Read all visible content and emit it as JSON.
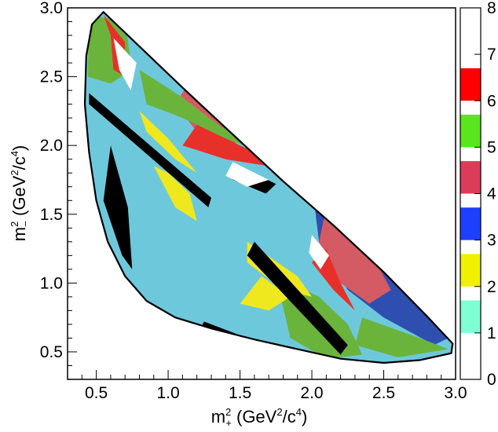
{
  "chart_data": {
    "type": "heatmap",
    "title": "",
    "xlabel": {
      "base": "m",
      "sup": "2",
      "sub": "+",
      "unit_pre": " (GeV",
      "unit_sup1": "2",
      "unit_mid": "/c",
      "unit_sup2": "4",
      "unit_post": ")"
    },
    "ylabel": {
      "base": "m",
      "sup": "2",
      "sub": "−",
      "unit_pre": " (GeV",
      "unit_sup1": "2",
      "unit_mid": "/c",
      "unit_sup2": "4",
      "unit_post": ")"
    },
    "xlim": [
      0.3,
      3.0
    ],
    "ylim": [
      0.3,
      3.0
    ],
    "x_ticks": [
      {
        "value": 0.5,
        "label": "0.5"
      },
      {
        "value": 1.0,
        "label": "1.0"
      },
      {
        "value": 1.5,
        "label": "1.5"
      },
      {
        "value": 2.0,
        "label": "2.0"
      },
      {
        "value": 2.5,
        "label": "2.5"
      },
      {
        "value": 3.0,
        "label": "3.0"
      }
    ],
    "y_ticks": [
      {
        "value": 0.5,
        "label": "0.5"
      },
      {
        "value": 1.0,
        "label": "1.0"
      },
      {
        "value": 1.5,
        "label": "1.5"
      },
      {
        "value": 2.0,
        "label": "2.0"
      },
      {
        "value": 2.5,
        "label": "2.5"
      },
      {
        "value": 3.0,
        "label": "3.0"
      }
    ],
    "colorbar": {
      "range": [
        0,
        8
      ],
      "bins": [
        {
          "value": 0,
          "color": "#ffffff"
        },
        {
          "value": 1,
          "color": "#7fffd4"
        },
        {
          "value": 2,
          "color": "#f0f000"
        },
        {
          "value": 3,
          "color": "#1f3fff"
        },
        {
          "value": 4,
          "color": "#dc3c5a"
        },
        {
          "value": 5,
          "color": "#5ae61e"
        },
        {
          "value": 6,
          "color": "#ff0000"
        },
        {
          "value": 7,
          "color": "#ffffff"
        },
        {
          "value": 8,
          "color": "#000000"
        }
      ],
      "labels": [
        {
          "value": 0,
          "label": "0"
        },
        {
          "value": 1,
          "label": "1"
        },
        {
          "value": 2,
          "label": "2"
        },
        {
          "value": 3,
          "label": "3"
        },
        {
          "value": 4,
          "label": "4"
        },
        {
          "value": 5,
          "label": "5"
        },
        {
          "value": 6,
          "label": "6"
        },
        {
          "value": 7,
          "label": "7"
        },
        {
          "value": 8,
          "label": "8"
        }
      ]
    },
    "region_colors": {
      "background_fill": "#6ec8dc",
      "blue": "#2e4fb0",
      "red": "#e8302a",
      "green": "#6ab43c",
      "yellow": "#f0e81e",
      "pink": "#d45a64",
      "black": "#000000",
      "white": "#ffffff"
    },
    "boundary": [
      [
        0.55,
        2.97
      ],
      [
        0.8,
        2.72
      ],
      [
        1.1,
        2.42
      ],
      [
        1.45,
        2.08
      ],
      [
        1.8,
        1.74
      ],
      [
        2.15,
        1.42
      ],
      [
        2.5,
        1.08
      ],
      [
        2.8,
        0.76
      ],
      [
        2.98,
        0.56
      ],
      [
        2.97,
        0.49
      ],
      [
        2.75,
        0.44
      ],
      [
        2.5,
        0.42
      ],
      [
        2.2,
        0.45
      ],
      [
        1.9,
        0.52
      ],
      [
        1.6,
        0.59
      ],
      [
        1.3,
        0.67
      ],
      [
        1.05,
        0.75
      ],
      [
        0.85,
        0.87
      ],
      [
        0.7,
        1.05
      ],
      [
        0.58,
        1.3
      ],
      [
        0.5,
        1.6
      ],
      [
        0.45,
        1.95
      ],
      [
        0.42,
        2.3
      ],
      [
        0.43,
        2.65
      ],
      [
        0.47,
        2.88
      ]
    ],
    "patches": [
      {
        "color": "blue",
        "points": [
          [
            0.95,
            2.8
          ],
          [
            1.4,
            2.3
          ],
          [
            1.8,
            1.95
          ],
          [
            2.05,
            1.72
          ],
          [
            1.85,
            1.95
          ],
          [
            1.5,
            2.25
          ],
          [
            1.15,
            2.55
          ],
          [
            0.9,
            2.75
          ]
        ]
      },
      {
        "color": "blue",
        "points": [
          [
            2.0,
            1.72
          ],
          [
            2.5,
            1.15
          ],
          [
            2.95,
            0.6
          ],
          [
            2.85,
            0.55
          ],
          [
            2.5,
            0.75
          ],
          [
            2.25,
            0.95
          ],
          [
            2.05,
            1.3
          ]
        ]
      },
      {
        "color": "pink",
        "points": [
          [
            1.2,
            2.55
          ],
          [
            1.5,
            2.35
          ],
          [
            1.6,
            2.15
          ],
          [
            1.45,
            2.0
          ],
          [
            1.2,
            2.1
          ],
          [
            1.05,
            2.3
          ]
        ]
      },
      {
        "color": "pink",
        "points": [
          [
            2.1,
            1.55
          ],
          [
            2.45,
            1.15
          ],
          [
            2.55,
            0.95
          ],
          [
            2.4,
            0.85
          ],
          [
            2.2,
            1.0
          ],
          [
            2.05,
            1.3
          ]
        ]
      },
      {
        "color": "green",
        "points": [
          [
            0.45,
            2.95
          ],
          [
            0.7,
            2.9
          ],
          [
            0.75,
            2.55
          ],
          [
            0.6,
            2.45
          ],
          [
            0.44,
            2.5
          ]
        ]
      },
      {
        "color": "green",
        "points": [
          [
            0.8,
            2.55
          ],
          [
            1.1,
            2.35
          ],
          [
            1.35,
            2.15
          ],
          [
            1.65,
            1.95
          ],
          [
            1.4,
            2.05
          ],
          [
            1.1,
            2.2
          ],
          [
            0.85,
            2.3
          ]
        ]
      },
      {
        "color": "green",
        "points": [
          [
            1.75,
            1.05
          ],
          [
            2.05,
            0.9
          ],
          [
            2.25,
            0.7
          ],
          [
            2.35,
            0.48
          ],
          [
            2.1,
            0.45
          ],
          [
            1.85,
            0.6
          ]
        ]
      },
      {
        "color": "green",
        "points": [
          [
            2.35,
            0.75
          ],
          [
            2.75,
            0.6
          ],
          [
            2.95,
            0.52
          ],
          [
            2.6,
            0.46
          ],
          [
            2.3,
            0.55
          ]
        ]
      },
      {
        "color": "red",
        "points": [
          [
            0.55,
            2.95
          ],
          [
            0.7,
            2.75
          ],
          [
            0.7,
            2.5
          ],
          [
            0.62,
            2.55
          ],
          [
            0.6,
            2.8
          ]
        ]
      },
      {
        "color": "red",
        "points": [
          [
            1.2,
            2.15
          ],
          [
            1.6,
            1.95
          ],
          [
            1.7,
            1.85
          ],
          [
            1.4,
            1.9
          ],
          [
            1.1,
            2.0
          ]
        ]
      },
      {
        "color": "red",
        "points": [
          [
            2.1,
            1.25
          ],
          [
            2.2,
            1.0
          ],
          [
            2.3,
            0.8
          ],
          [
            2.15,
            0.95
          ],
          [
            2.0,
            1.15
          ]
        ]
      },
      {
        "color": "red",
        "points": [
          [
            1.15,
            0.55
          ],
          [
            1.45,
            0.55
          ],
          [
            1.3,
            0.48
          ],
          [
            1.1,
            0.5
          ]
        ]
      },
      {
        "color": "red",
        "points": [
          [
            0.55,
            1.25
          ],
          [
            0.65,
            1.15
          ],
          [
            0.6,
            1.05
          ],
          [
            0.52,
            1.15
          ]
        ]
      },
      {
        "color": "yellow",
        "points": [
          [
            0.9,
            1.85
          ],
          [
            1.05,
            1.55
          ],
          [
            1.2,
            1.45
          ],
          [
            1.15,
            1.65
          ],
          [
            1.0,
            1.8
          ]
        ]
      },
      {
        "color": "yellow",
        "points": [
          [
            1.55,
            1.3
          ],
          [
            1.9,
            1.05
          ],
          [
            2.0,
            0.9
          ],
          [
            1.8,
            0.95
          ],
          [
            1.55,
            1.15
          ]
        ]
      },
      {
        "color": "yellow",
        "points": [
          [
            1.65,
            1.05
          ],
          [
            1.85,
            0.9
          ],
          [
            1.7,
            0.8
          ],
          [
            1.5,
            0.85
          ]
        ]
      },
      {
        "color": "yellow",
        "points": [
          [
            0.8,
            2.25
          ],
          [
            1.0,
            2.05
          ],
          [
            1.2,
            1.8
          ],
          [
            1.05,
            1.9
          ],
          [
            0.85,
            2.1
          ]
        ]
      },
      {
        "color": "black",
        "points": [
          [
            0.6,
            2.0
          ],
          [
            0.72,
            1.55
          ],
          [
            0.75,
            1.1
          ],
          [
            0.68,
            1.2
          ],
          [
            0.55,
            1.6
          ]
        ]
      },
      {
        "color": "black",
        "points": [
          [
            0.45,
            2.38
          ],
          [
            1.3,
            1.62
          ],
          [
            1.28,
            1.55
          ],
          [
            0.45,
            2.3
          ]
        ]
      },
      {
        "color": "black",
        "points": [
          [
            1.6,
            1.3
          ],
          [
            2.25,
            0.55
          ],
          [
            2.2,
            0.48
          ],
          [
            1.55,
            1.2
          ]
        ]
      },
      {
        "color": "black",
        "points": [
          [
            1.25,
            0.72
          ],
          [
            1.6,
            0.58
          ],
          [
            1.4,
            0.52
          ],
          [
            1.2,
            0.62
          ]
        ]
      },
      {
        "color": "black",
        "points": [
          [
            1.5,
            1.85
          ],
          [
            1.75,
            1.72
          ],
          [
            1.68,
            1.65
          ],
          [
            1.45,
            1.75
          ]
        ]
      },
      {
        "color": "white",
        "points": [
          [
            0.62,
            2.78
          ],
          [
            0.78,
            2.6
          ],
          [
            0.74,
            2.4
          ],
          [
            0.66,
            2.55
          ]
        ]
      },
      {
        "color": "white",
        "points": [
          [
            1.45,
            1.88
          ],
          [
            1.7,
            1.75
          ],
          [
            1.55,
            1.7
          ],
          [
            1.4,
            1.78
          ]
        ]
      },
      {
        "color": "white",
        "points": [
          [
            0.98,
            0.62
          ],
          [
            1.2,
            0.58
          ],
          [
            1.05,
            0.55
          ]
        ]
      },
      {
        "color": "white",
        "points": [
          [
            2.0,
            1.35
          ],
          [
            2.12,
            1.2
          ],
          [
            2.06,
            1.1
          ],
          [
            1.98,
            1.22
          ]
        ]
      }
    ]
  }
}
